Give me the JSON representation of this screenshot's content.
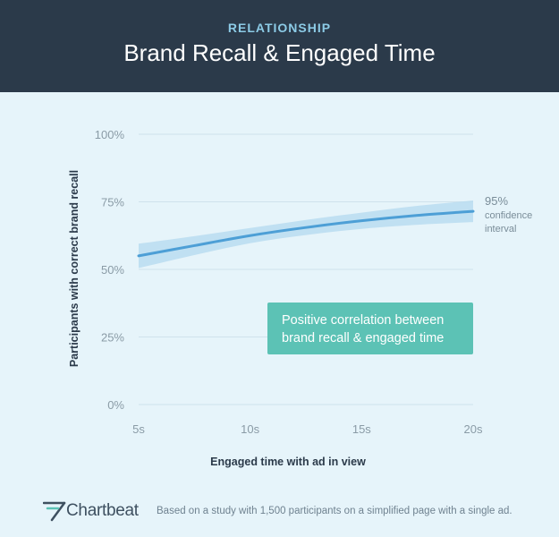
{
  "header": {
    "kicker": "RELATIONSHIP",
    "title": "Brand Recall & Engaged Time"
  },
  "chart_data": {
    "type": "line",
    "xlabel": "Engaged time with ad in view",
    "ylabel": "Participants with correct brand recall",
    "xlim": [
      5,
      20
    ],
    "ylim": [
      0,
      100
    ],
    "x_ticks": [
      5,
      10,
      15,
      20
    ],
    "x_tick_labels": [
      "5s",
      "10s",
      "15s",
      "20s"
    ],
    "y_ticks": [
      0,
      25,
      50,
      75,
      100
    ],
    "y_tick_labels": [
      "0%",
      "25%",
      "50%",
      "75%",
      "100%"
    ],
    "grid": "horizontal",
    "series": [
      {
        "x": [
          5,
          7.5,
          10,
          12.5,
          15,
          17.5,
          20
        ],
        "y": [
          55,
          58.8,
          62.5,
          65.5,
          68,
          70,
          71.5
        ],
        "ci_upper": [
          59.5,
          62.3,
          65.3,
          68.3,
          71,
          73.5,
          75.5
        ],
        "ci_lower": [
          50.5,
          55.3,
          59.7,
          62.7,
          65,
          66.5,
          67.5
        ],
        "color": "#4d9fd6",
        "band_color": "#b8dcf0"
      }
    ],
    "annotations": {
      "ci_label": [
        "95%",
        "confidence",
        "interval"
      ],
      "callout": [
        "Positive correlation between",
        "brand recall & engaged time"
      ],
      "callout_color": "#5cc2b5"
    }
  },
  "footer": {
    "logo": "Chartbeat",
    "note": "Based on a study with 1,500 participants on a simplified page with a single ad."
  }
}
